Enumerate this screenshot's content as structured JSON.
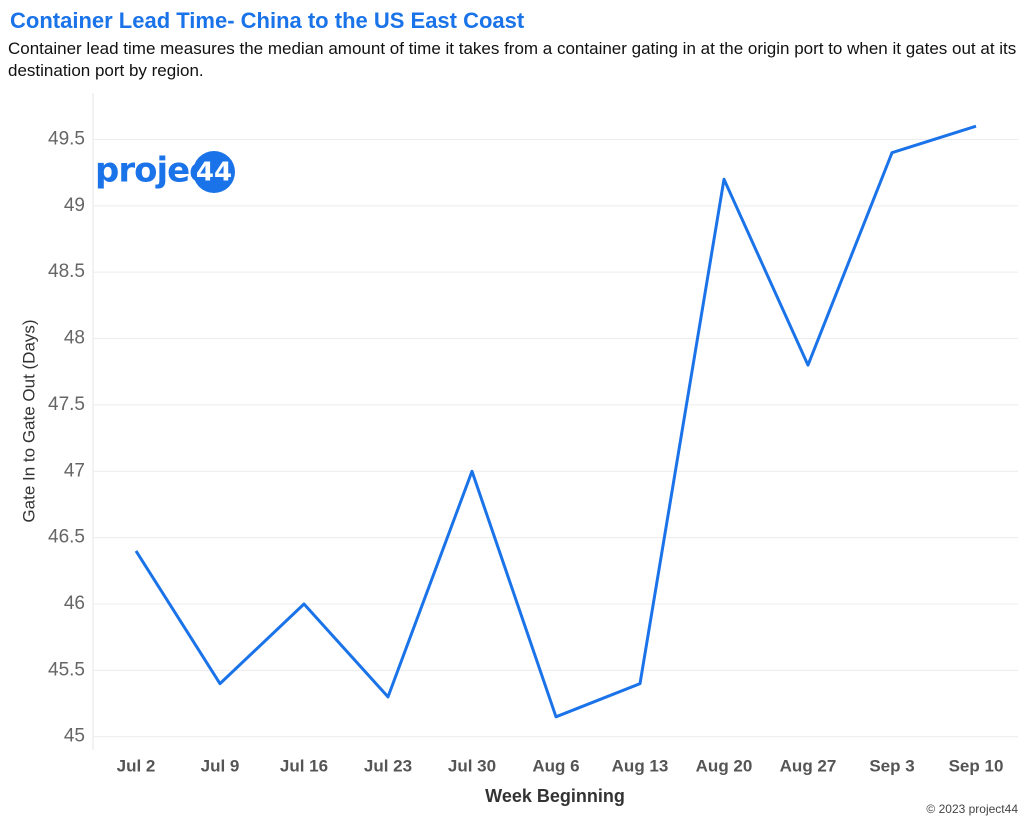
{
  "chart_data": {
    "type": "line",
    "title": "Container Lead Time- China to the US East Coast",
    "subtitle": "Container lead time measures the median amount of time it takes from a container gating in at the origin port to when it gates out at its destination port by region.",
    "x_label": "Week Beginning",
    "y_label": "Gate In to Gate Out (Days)",
    "categories": [
      "Jul 2",
      "Jul 9",
      "Jul 16",
      "Jul 23",
      "Jul 30",
      "Aug 6",
      "Aug 13",
      "Aug 20",
      "Aug 27",
      "Sep 3",
      "Sep 10"
    ],
    "values": [
      46.4,
      45.4,
      46.0,
      45.3,
      47.0,
      45.15,
      45.4,
      49.2,
      47.8,
      49.4,
      49.6
    ],
    "color": "#1a73e8",
    "ylim": [
      44.9,
      49.85
    ],
    "yticks": [
      45,
      45.5,
      46,
      46.5,
      47,
      47.5,
      48,
      48.5,
      49,
      49.5
    ],
    "grid": true
  },
  "logo": {
    "text": "project",
    "badge": "44"
  },
  "copyright": "© 2023 project44"
}
